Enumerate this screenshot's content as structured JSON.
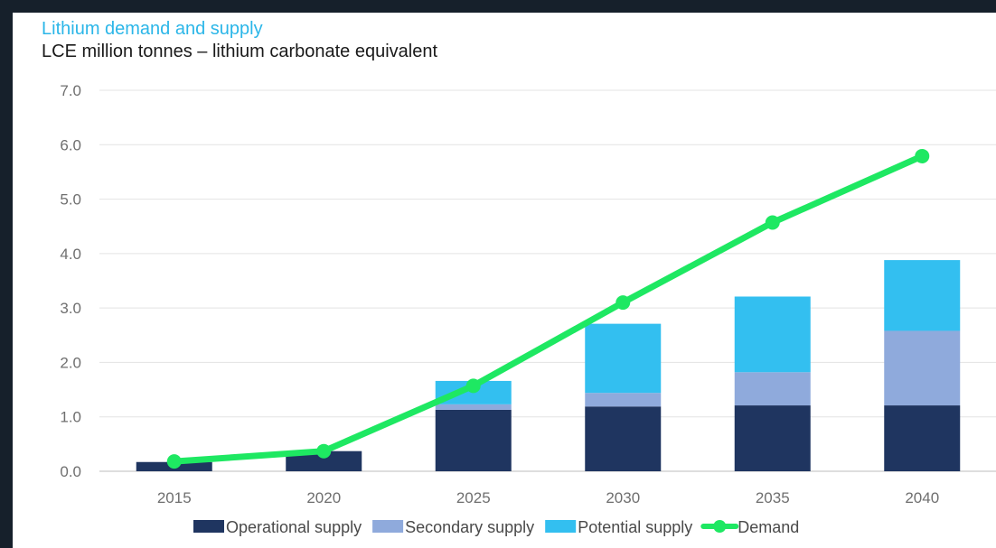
{
  "chart_data": {
    "type": "bar",
    "title": "Lithium demand and supply",
    "subtitle": "LCE million tonnes – lithium carbonate equivalent",
    "categories": [
      "2015",
      "2020",
      "2025",
      "2030",
      "2035",
      "2040"
    ],
    "y_ticks": [
      "0.0",
      "1.0",
      "2.0",
      "3.0",
      "4.0",
      "5.0",
      "6.0",
      "7.0"
    ],
    "ylim": [
      0,
      7
    ],
    "grid": true,
    "stacked": true,
    "series": [
      {
        "name": "Operational supply",
        "type": "bar",
        "color": "#1f3560",
        "values": [
          0.17,
          0.37,
          1.13,
          1.19,
          1.21,
          1.21
        ]
      },
      {
        "name": "Secondary supply",
        "type": "bar",
        "color": "#8faadc",
        "values": [
          0,
          0,
          0.1,
          0.25,
          0.61,
          1.37
        ]
      },
      {
        "name": "Potential supply",
        "type": "bar",
        "color": "#33bff0",
        "values": [
          0,
          0,
          0.43,
          1.27,
          1.39,
          1.3
        ]
      },
      {
        "name": "Demand",
        "type": "line",
        "color": "#1ee862",
        "values": [
          0.18,
          0.37,
          1.57,
          3.1,
          4.57,
          5.79
        ]
      }
    ],
    "legend_position": "bottom-center"
  }
}
